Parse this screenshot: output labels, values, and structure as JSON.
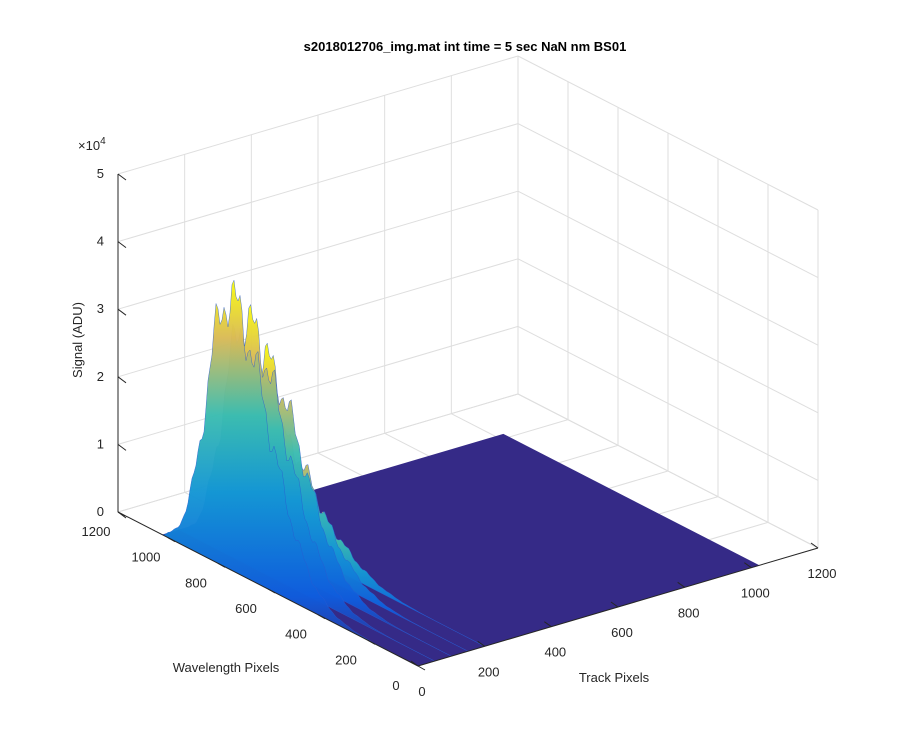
{
  "chart_data": {
    "type": "surface",
    "title": "s2018012706_img.mat int time = 5 sec  NaN nm BS01",
    "xlabel": "Track Pixels",
    "ylabel": "Wavelength Pixels",
    "zlabel": "Signal (ADU)",
    "z_multiplier_label": "×10",
    "z_multiplier_exponent": "4",
    "xlim": [
      0,
      1200
    ],
    "ylim": [
      0,
      1200
    ],
    "zlim": [
      0,
      50000
    ],
    "x_ticks": [
      "0",
      "200",
      "400",
      "600",
      "800",
      "1000",
      "1200"
    ],
    "y_ticks": [
      "0",
      "200",
      "400",
      "600",
      "800",
      "1000",
      "1200"
    ],
    "z_ticks": [
      "0",
      "1",
      "2",
      "3",
      "4",
      "5"
    ],
    "grid": true,
    "colormap": "parula",
    "data_extent": {
      "track_pixels": [
        0,
        1024
      ],
      "wavelength_pixels": [
        0,
        1024
      ]
    },
    "profile_rows": [
      {
        "track_pixel": 0,
        "peak_signal": 40000
      },
      {
        "track_pixel": 50,
        "peak_signal": 36000
      },
      {
        "track_pixel": 100,
        "peak_signal": 30000
      },
      {
        "track_pixel": 150,
        "peak_signal": 18000
      },
      {
        "track_pixel": 200,
        "peak_signal": 9000
      }
    ],
    "colors": {
      "floor": "#352a87",
      "low": "#0f5cdd",
      "mid": "#1ab2b0",
      "high": "#f9fb0e"
    }
  }
}
